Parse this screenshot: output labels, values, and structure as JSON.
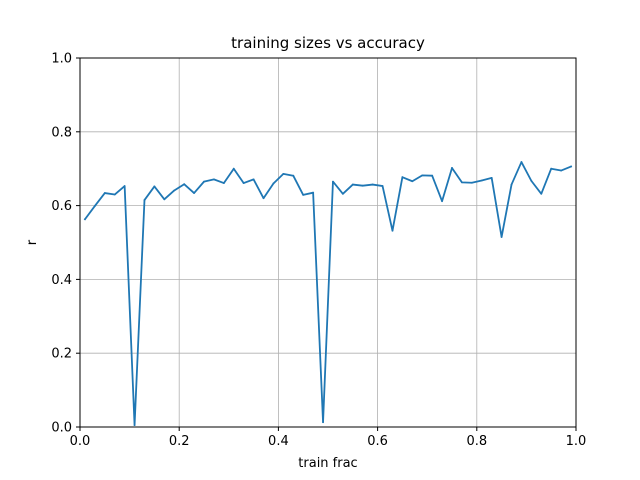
{
  "chart_data": {
    "type": "line",
    "title": "training sizes vs accuracy",
    "xlabel": "train frac",
    "ylabel": "r",
    "xlim": [
      0.0,
      1.0
    ],
    "ylim": [
      0.0,
      1.0
    ],
    "grid": true,
    "x_ticks": [
      "0.0",
      "0.2",
      "0.4",
      "0.6",
      "0.8",
      "1.0"
    ],
    "y_ticks": [
      "0.0",
      "0.2",
      "0.4",
      "0.6",
      "0.8",
      "1.0"
    ],
    "line_color": "#1f77b4",
    "series": [
      {
        "x": [
          0.01,
          0.03,
          0.05,
          0.07,
          0.09,
          0.11,
          0.13,
          0.15,
          0.17,
          0.19,
          0.21,
          0.23,
          0.25,
          0.27,
          0.29,
          0.31,
          0.33,
          0.35,
          0.37,
          0.39,
          0.41,
          0.43,
          0.45,
          0.47,
          0.49,
          0.51,
          0.53,
          0.55,
          0.57,
          0.59,
          0.61,
          0.63,
          0.65,
          0.67,
          0.69,
          0.71,
          0.73,
          0.75,
          0.77,
          0.79,
          0.81,
          0.83,
          0.85,
          0.87,
          0.89,
          0.91,
          0.93,
          0.95,
          0.97,
          0.99
        ],
        "y": [
          0.563,
          0.599,
          0.634,
          0.63,
          0.653,
          0.005,
          0.615,
          0.652,
          0.617,
          0.641,
          0.658,
          0.634,
          0.665,
          0.671,
          0.661,
          0.7,
          0.661,
          0.671,
          0.62,
          0.66,
          0.686,
          0.681,
          0.629,
          0.635,
          0.013,
          0.665,
          0.632,
          0.657,
          0.654,
          0.657,
          0.653,
          0.532,
          0.677,
          0.666,
          0.682,
          0.681,
          0.612,
          0.702,
          0.663,
          0.662,
          0.668,
          0.675,
          0.515,
          0.657,
          0.718,
          0.667,
          0.632,
          0.7,
          0.695,
          0.706
        ]
      }
    ]
  }
}
